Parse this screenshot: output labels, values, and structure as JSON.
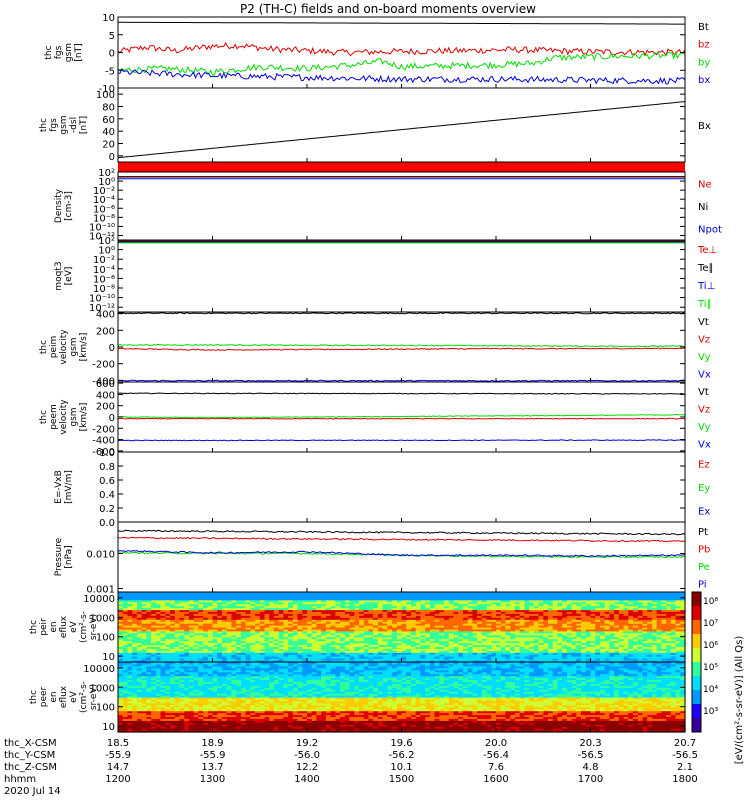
{
  "title": "P2 (TH-C) fields and on-board moments overview",
  "colors": {
    "black": "#000000",
    "red": "#e00000",
    "green": "#00dd00",
    "blue": "#0000dd",
    "purple": "#7a1aa0"
  },
  "chart_data": [
    {
      "type": "line",
      "panel": "fgs",
      "ylabel": [
        "thc",
        "fgs",
        "gsm",
        "[nT]"
      ],
      "ylim": [
        -10,
        10
      ],
      "ticks": [
        {
          "v": -10,
          "t": "-10"
        },
        {
          "v": -5,
          "t": "-5"
        },
        {
          "v": 0,
          "t": "0"
        },
        {
          "v": 5,
          "t": "5"
        },
        {
          "v": 10,
          "t": "10"
        }
      ],
      "series": [
        {
          "name": "Bt",
          "color": "#000000",
          "x": [
            1200,
            1800
          ],
          "y": [
            8.5,
            8.0
          ]
        },
        {
          "name": "bz",
          "color": "#e00000",
          "x": [
            1200,
            1230,
            1260,
            1300,
            1330,
            1360,
            1400,
            1440,
            1500,
            1560,
            1620,
            1700,
            1800
          ],
          "y": [
            0.2,
            1.5,
            0.5,
            1.8,
            2.0,
            1.0,
            0.5,
            0.0,
            0.3,
            0.5,
            0.8,
            0.2,
            0.0
          ]
        },
        {
          "name": "by",
          "color": "#00dd00",
          "x": [
            1200,
            1250,
            1300,
            1350,
            1400,
            1450,
            1480,
            1500,
            1600,
            1640,
            1660,
            1700,
            1800
          ],
          "y": [
            -5.0,
            -4.5,
            -5.5,
            -4.0,
            -4.5,
            -3.5,
            -2.5,
            -4.0,
            -3.5,
            -3.0,
            -1.5,
            -1.2,
            -0.8
          ]
        },
        {
          "name": "bx",
          "color": "#0000dd",
          "x": [
            1200,
            1300,
            1400,
            1500,
            1600,
            1700,
            1800
          ],
          "y": [
            -5.5,
            -6.5,
            -7.0,
            -7.5,
            -7.5,
            -7.8,
            -8.0
          ]
        }
      ]
    },
    {
      "type": "line",
      "panel": "fgs-dsl",
      "ylabel": [
        "thc",
        "fgs",
        "gsm",
        "-dsl",
        "[nT]"
      ],
      "ylim": [
        -10,
        110
      ],
      "ticks": [
        {
          "v": 0,
          "t": "0"
        },
        {
          "v": 20,
          "t": "20"
        },
        {
          "v": 40,
          "t": "40"
        },
        {
          "v": 60,
          "t": "60"
        },
        {
          "v": 80,
          "t": "80"
        },
        {
          "v": 100,
          "t": "100"
        }
      ],
      "series": [
        {
          "name": "Bx",
          "color": "#000000",
          "x": [
            1200,
            1800
          ],
          "y": [
            -3,
            88
          ]
        }
      ]
    },
    {
      "type": "line",
      "panel": "density",
      "ylabel": [
        "Density",
        "[cm-3]"
      ],
      "log": true,
      "ylim": [
        -13,
        2
      ],
      "ticks": [
        {
          "v": 2,
          "t": "10²"
        },
        {
          "v": 0,
          "t": "10⁰"
        },
        {
          "v": -2,
          "t": "10⁻²"
        },
        {
          "v": -4,
          "t": "10⁻⁴"
        },
        {
          "v": -6,
          "t": "10⁻⁶"
        },
        {
          "v": -8,
          "t": "10⁻⁸"
        },
        {
          "v": -10,
          "t": "10⁻¹⁰"
        },
        {
          "v": -12,
          "t": "10⁻¹²"
        }
      ],
      "series": [
        {
          "name": "Ne",
          "color": "#e00000",
          "x": [
            1200,
            1800
          ],
          "y": [
            1.0,
            1.0
          ]
        },
        {
          "name": "Ni",
          "color": "#000000",
          "x": [
            1200,
            1800
          ],
          "y": [
            0.9,
            0.9
          ]
        },
        {
          "name": "Npot",
          "color": "#0000dd",
          "x": [
            1200,
            1800
          ],
          "y": [
            0.5,
            0.5
          ]
        }
      ]
    },
    {
      "type": "line",
      "panel": "temperature",
      "ylabel": [
        "moqt3",
        "[eV]"
      ],
      "log": true,
      "ylim": [
        -13,
        2
      ],
      "ticks": [
        {
          "v": 2,
          "t": "10²"
        },
        {
          "v": 0,
          "t": "10⁰"
        },
        {
          "v": -2,
          "t": "10⁻²"
        },
        {
          "v": -4,
          "t": "10⁻⁴"
        },
        {
          "v": -6,
          "t": "10⁻⁶"
        },
        {
          "v": -8,
          "t": "10⁻⁸"
        },
        {
          "v": -10,
          "t": "10⁻¹⁰"
        },
        {
          "v": -12,
          "t": "10⁻¹²"
        }
      ],
      "series": [
        {
          "name": "Te⊥",
          "color": "#e00000",
          "x": [
            1200,
            1800
          ],
          "y": [
            1.8,
            1.8
          ]
        },
        {
          "name": "Te∥",
          "color": "#000000",
          "x": [
            1200,
            1800
          ],
          "y": [
            1.7,
            1.7
          ]
        },
        {
          "name": "Ti⊥",
          "color": "#0000dd",
          "x": [
            1200,
            1800
          ],
          "y": [
            1.5,
            1.5
          ]
        },
        {
          "name": "Ti∥",
          "color": "#00dd00",
          "x": [
            1200,
            1800
          ],
          "y": [
            1.4,
            1.4
          ]
        }
      ]
    },
    {
      "type": "line",
      "panel": "peim",
      "ylabel": [
        "thc",
        "peim",
        "velocity",
        "gsm",
        "[km/s]"
      ],
      "ylim": [
        -420,
        420
      ],
      "ticks": [
        {
          "v": -400,
          "t": "-400"
        },
        {
          "v": -200,
          "t": "-200"
        },
        {
          "v": 0,
          "t": "0"
        },
        {
          "v": 200,
          "t": "200"
        },
        {
          "v": 400,
          "t": "400"
        }
      ],
      "series": [
        {
          "name": "Vt",
          "color": "#000000",
          "x": [
            1200,
            1800
          ],
          "y": [
            405,
            405
          ]
        },
        {
          "name": "Vz",
          "color": "#e00000",
          "x": [
            1200,
            1300,
            1400,
            1500,
            1600,
            1700,
            1800
          ],
          "y": [
            -20,
            -35,
            -30,
            -25,
            -20,
            -20,
            -15
          ]
        },
        {
          "name": "Vy",
          "color": "#00dd00",
          "x": [
            1200,
            1300,
            1400,
            1500,
            1600,
            1700,
            1800
          ],
          "y": [
            25,
            25,
            20,
            20,
            15,
            10,
            10
          ]
        },
        {
          "name": "Vx",
          "color": "#0000dd",
          "x": [
            1200,
            1800
          ],
          "y": [
            -405,
            -405
          ]
        }
      ]
    },
    {
      "type": "line",
      "panel": "peem",
      "ylabel": [
        "thc",
        "peem",
        "velocity",
        "gsm",
        "[km/s]"
      ],
      "ylim": [
        -620,
        620
      ],
      "ticks": [
        {
          "v": -600,
          "t": "-600"
        },
        {
          "v": -400,
          "t": "-400"
        },
        {
          "v": -200,
          "t": "-200"
        },
        {
          "v": 0,
          "t": "0"
        },
        {
          "v": 200,
          "t": "200"
        },
        {
          "v": 400,
          "t": "400"
        },
        {
          "v": 600,
          "t": "600"
        }
      ],
      "series": [
        {
          "name": "Vt",
          "color": "#000000",
          "x": [
            1200,
            1800
          ],
          "y": [
            420,
            410
          ]
        },
        {
          "name": "Vz",
          "color": "#e00000",
          "x": [
            1200,
            1800
          ],
          "y": [
            -30,
            -30
          ]
        },
        {
          "name": "Vy",
          "color": "#00dd00",
          "x": [
            1200,
            1300,
            1400,
            1500,
            1600,
            1700,
            1800
          ],
          "y": [
            0,
            -10,
            0,
            10,
            20,
            30,
            40
          ]
        },
        {
          "name": "Vx",
          "color": "#0000dd",
          "x": [
            1200,
            1800
          ],
          "y": [
            -415,
            -410
          ]
        }
      ]
    },
    {
      "type": "line",
      "panel": "efield",
      "ylabel": [
        "E=-VxB",
        "[mV/m]"
      ],
      "ylim": [
        0,
        1
      ],
      "ticks": [
        {
          "v": 0,
          "t": "0.0"
        },
        {
          "v": 0.2,
          "t": "0.2"
        },
        {
          "v": 0.4,
          "t": "0.4"
        },
        {
          "v": 0.6,
          "t": "0.6"
        },
        {
          "v": 0.8,
          "t": "0.8"
        },
        {
          "v": 1.0,
          "t": "1.0"
        }
      ],
      "series": [
        {
          "name": "Ez",
          "color": "#e00000",
          "x": [],
          "y": []
        },
        {
          "name": "Ey",
          "color": "#00dd00",
          "x": [],
          "y": []
        },
        {
          "name": "Ex",
          "color": "#0000dd",
          "x": [],
          "y": []
        }
      ]
    },
    {
      "type": "line",
      "panel": "pressure",
      "ylabel": [
        "Pressure",
        "[nPa]"
      ],
      "log": true,
      "ylim": [
        -3.1,
        -1.1
      ],
      "ticks": [
        {
          "v": -3,
          "t": "0.001"
        },
        {
          "v": -2,
          "t": "0.010"
        }
      ],
      "series": [
        {
          "name": "Pt",
          "color": "#000000",
          "x": [
            1200,
            1800
          ],
          "y": [
            -1.35,
            -1.45
          ]
        },
        {
          "name": "Pb",
          "color": "#e00000",
          "x": [
            1200,
            1800
          ],
          "y": [
            -1.55,
            -1.65
          ]
        },
        {
          "name": "Pe",
          "color": "#00dd00",
          "x": [
            1200,
            1300,
            1400,
            1500,
            1600,
            1700,
            1800
          ],
          "y": [
            -1.98,
            -2.0,
            -2.0,
            -2.05,
            -2.08,
            -2.1,
            -2.1
          ]
        },
        {
          "name": "Pi",
          "color": "#0000dd",
          "x": [
            1200,
            1300,
            1400,
            1500,
            1600,
            1700,
            1800
          ],
          "y": [
            -1.92,
            -1.98,
            -1.95,
            -2.05,
            -2.05,
            -2.07,
            -2.05
          ]
        }
      ]
    },
    {
      "type": "heatmap",
      "panel": "peir",
      "ylabel": [
        "thc",
        "peir",
        "en",
        "eflux",
        "eV",
        "(cm²-s-",
        "sr-eV)"
      ],
      "log": true,
      "ylim": [
        0.7,
        4.3
      ],
      "ticks": [
        {
          "v": 1,
          "t": "10"
        },
        {
          "v": 2,
          "t": "100"
        },
        {
          "v": 3,
          "t": "1000"
        },
        {
          "v": 4,
          "t": "10000"
        }
      ]
    },
    {
      "type": "heatmap",
      "panel": "peer",
      "ylabel": [
        "thc",
        "peer",
        "en",
        "eflux",
        "eV",
        "(cm²-s-",
        "sr-eV)"
      ],
      "log": true,
      "ylim": [
        0.7,
        4.3
      ],
      "ticks": [
        {
          "v": 1,
          "t": "10"
        },
        {
          "v": 2,
          "t": "100"
        },
        {
          "v": 3,
          "t": "1000"
        },
        {
          "v": 4,
          "t": "10000"
        }
      ]
    }
  ],
  "colorbar": {
    "ticks": [
      "10⁸",
      "10⁷",
      "10⁶",
      "10⁵",
      "10⁴",
      "10³"
    ],
    "label": "[eV/(cm²-s-sr-eV)] (All Qs)"
  },
  "xaxis": {
    "ticks": [
      1200,
      1300,
      1400,
      1500,
      1600,
      1700,
      1800
    ],
    "rows": [
      {
        "label": "thc_X-CSM",
        "values": [
          "18.5",
          "18.9",
          "19.2",
          "19.6",
          "20.0",
          "20.3",
          "20.7"
        ]
      },
      {
        "label": "thc_Y-CSM",
        "values": [
          "-55.9",
          "-55.9",
          "-56.0",
          "-56.2",
          "-56.4",
          "-56.5",
          "-56.5"
        ]
      },
      {
        "label": "thc_Z-CSM",
        "values": [
          "14.7",
          "13.7",
          "12.2",
          "10.1",
          "7.6",
          "4.8",
          "2.1"
        ]
      },
      {
        "label": "hhmm",
        "values": [
          "1200",
          "1300",
          "1400",
          "1500",
          "1600",
          "1700",
          "1800"
        ]
      }
    ],
    "date": "2020 Jul 14"
  }
}
